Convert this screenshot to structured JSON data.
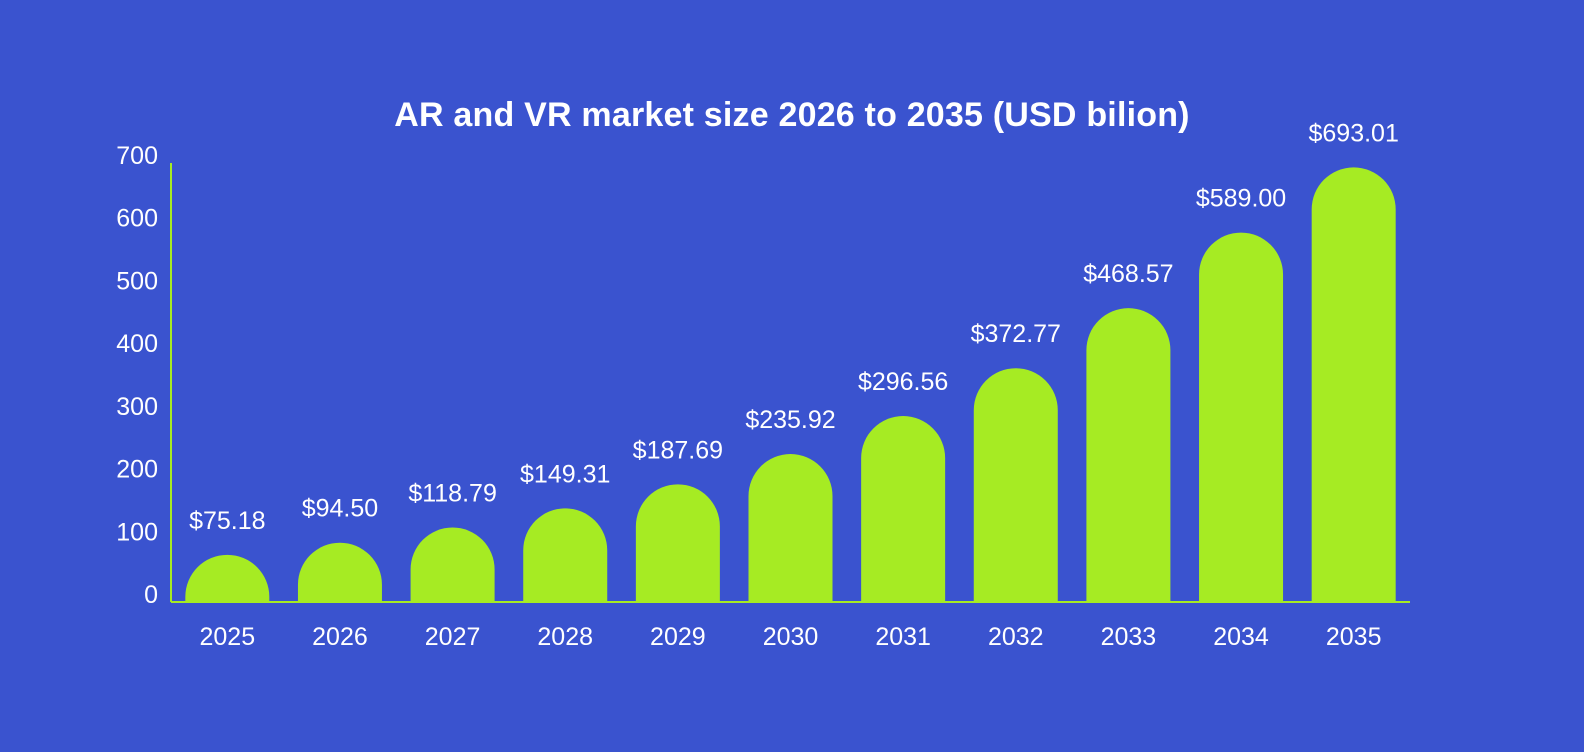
{
  "chart_data": {
    "type": "bar",
    "title": "AR and VR market size 2026 to 2035 (USD bilion)",
    "xlabel": "",
    "ylabel": "",
    "categories": [
      "2025",
      "2026",
      "2027",
      "2028",
      "2029",
      "2030",
      "2031",
      "2032",
      "2033",
      "2034",
      "2035"
    ],
    "values": [
      75.18,
      94.5,
      118.79,
      149.31,
      187.69,
      235.92,
      296.56,
      372.77,
      468.57,
      589.0,
      693.01
    ],
    "data_labels": [
      "$75.18",
      "$94.50",
      "$118.79",
      "$149.31",
      "$187.69",
      "$235.92",
      "$296.56",
      "$372.77",
      "$468.57",
      "$589.00",
      "$693.01"
    ],
    "ylim": [
      0,
      700
    ],
    "yticks": [
      "0",
      "100",
      "200",
      "300",
      "400",
      "500",
      "600",
      "700"
    ],
    "grid": false,
    "legend": "none",
    "colors": {
      "background": "#3a53cf",
      "bar": "#a6eb23",
      "axis": "#a6eb23",
      "text": "#ffffff"
    }
  }
}
